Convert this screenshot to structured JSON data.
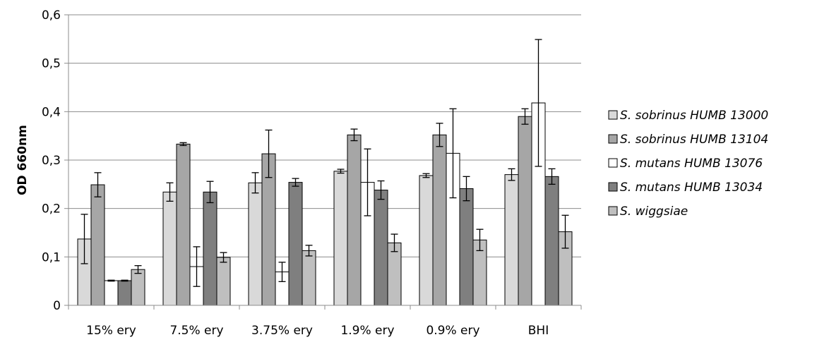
{
  "chart_data": {
    "type": "bar",
    "title": "",
    "xlabel": "",
    "ylabel": "OD 660nm",
    "ylim": [
      0,
      0.6
    ],
    "yticks": [
      "0",
      "0,1",
      "0,2",
      "0,3",
      "0,4",
      "0,5",
      "0,6"
    ],
    "grid": true,
    "legend_position": "right",
    "categories": [
      "15% ery",
      "7.5% ery",
      "3.75% ery",
      "1.9% ery",
      "0.9% ery",
      "BHI"
    ],
    "series": [
      {
        "name": "S. sobrinus HUMB 13000",
        "color": "#d9d9d9",
        "values": [
          0.137,
          0.234,
          0.253,
          0.277,
          0.268,
          0.27
        ],
        "errors": [
          0.051,
          0.019,
          0.021,
          0.004,
          0.004,
          0.012
        ]
      },
      {
        "name": "S. sobrinus HUMB 13104",
        "color": "#a6a6a6",
        "values": [
          0.249,
          0.333,
          0.313,
          0.352,
          0.352,
          0.39
        ],
        "errors": [
          0.025,
          0.003,
          0.049,
          0.012,
          0.024,
          0.016
        ]
      },
      {
        "name": "S. mutans HUMB 13076",
        "color": "#ffffff",
        "values": [
          0.051,
          0.08,
          0.069,
          0.254,
          0.314,
          0.418
        ],
        "errors": [
          0.001,
          0.041,
          0.02,
          0.069,
          0.092,
          0.131
        ]
      },
      {
        "name": "S. mutans HUMB 13034",
        "color": "#7f7f7f",
        "values": [
          0.051,
          0.234,
          0.254,
          0.238,
          0.241,
          0.266
        ],
        "errors": [
          0.001,
          0.022,
          0.008,
          0.019,
          0.025,
          0.016
        ]
      },
      {
        "name": "S. wiggsiae",
        "color": "#bfbfbf",
        "values": [
          0.074,
          0.099,
          0.113,
          0.129,
          0.135,
          0.152
        ],
        "errors": [
          0.008,
          0.01,
          0.011,
          0.018,
          0.022,
          0.034
        ]
      }
    ]
  }
}
